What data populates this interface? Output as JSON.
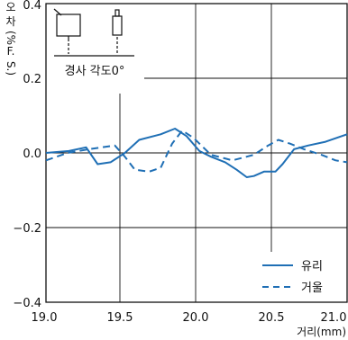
{
  "chart_data": {
    "type": "line",
    "title": "",
    "xlabel": "거리(mm)",
    "ylabel": [
      "오",
      "차",
      "(%",
      "F.",
      "S.)"
    ],
    "xlim": [
      18.9,
      21.0
    ],
    "ylim": [
      -0.4,
      0.4
    ],
    "x_ticks": [
      19.0,
      19.5,
      20.0,
      20.5,
      21.0
    ],
    "x_tick_labels": [
      "19.0",
      "19.5",
      "20.0",
      "20.5",
      "21.0"
    ],
    "y_ticks": [
      -0.4,
      -0.2,
      0.0,
      0.2,
      0.4
    ],
    "y_tick_labels": [
      "−0.4",
      "−0.2",
      "0.0",
      "0.2",
      "0.4"
    ],
    "inset_label": "경사 각도0°",
    "legend_placement": "bottom-right",
    "grid": "partial",
    "series": [
      {
        "name": "유리",
        "style": "solid",
        "color": "#1f6fb5",
        "x": [
          18.9,
          19.06,
          19.18,
          19.26,
          19.35,
          19.45,
          19.55,
          19.7,
          19.8,
          19.88,
          19.97,
          20.05,
          20.15,
          20.23,
          20.3,
          20.35,
          20.42,
          20.5,
          20.55,
          20.63,
          20.73,
          20.85,
          21.0
        ],
        "y": [
          0.0,
          0.005,
          0.015,
          -0.03,
          -0.025,
          0.0,
          0.035,
          0.05,
          0.065,
          0.045,
          0.005,
          -0.01,
          -0.025,
          -0.045,
          -0.065,
          -0.062,
          -0.05,
          -0.05,
          -0.03,
          0.01,
          0.02,
          0.03,
          0.05
        ]
      },
      {
        "name": "거울",
        "style": "dashed",
        "color": "#1f6fb5",
        "x": [
          18.9,
          19.05,
          19.2,
          19.38,
          19.45,
          19.52,
          19.62,
          19.7,
          19.78,
          19.85,
          19.93,
          20.05,
          20.2,
          20.35,
          20.45,
          20.52,
          20.6,
          20.7,
          20.82,
          20.92,
          21.0
        ],
        "y": [
          -0.02,
          0.0,
          0.01,
          0.02,
          -0.01,
          -0.045,
          -0.05,
          -0.04,
          0.025,
          0.06,
          0.04,
          -0.005,
          -0.02,
          -0.005,
          0.02,
          0.035,
          0.025,
          0.01,
          -0.005,
          -0.02,
          -0.025
        ]
      }
    ]
  }
}
